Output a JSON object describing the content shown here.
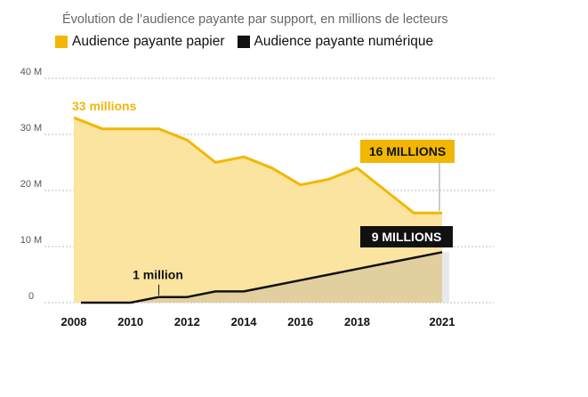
{
  "subtitle": "Évolution de l’audience payante par support, en millions de lecteurs",
  "colors": {
    "paper_line": "#f2b705",
    "paper_fill": "#fbe4a0",
    "digital_line": "#111111",
    "overlap_fill": "#e2cfa0",
    "grid": "#bbbbbb"
  },
  "chart_data": {
    "type": "area",
    "title": "",
    "subtitle": "Évolution de l’audience payante par support, en millions de lecteurs",
    "xlabel": "",
    "ylabel": "",
    "ylim": [
      0,
      40
    ],
    "xlim": [
      2008,
      2021
    ],
    "y_ticks": [
      {
        "value": 0,
        "label": "0"
      },
      {
        "value": 10,
        "label": "10 M"
      },
      {
        "value": 20,
        "label": "20 M"
      },
      {
        "value": 30,
        "label": "30 M"
      },
      {
        "value": 40,
        "label": "40 M"
      }
    ],
    "x_ticks": [
      {
        "value": 2008,
        "label": "2008"
      },
      {
        "value": 2010,
        "label": "2010"
      },
      {
        "value": 2012,
        "label": "2012"
      },
      {
        "value": 2014,
        "label": "2014"
      },
      {
        "value": 2016,
        "label": "2016"
      },
      {
        "value": 2018,
        "label": "2018"
      },
      {
        "value": 2021,
        "label": "2021"
      }
    ],
    "grid": true,
    "legend_position": "top-left",
    "series": [
      {
        "name": "Audience payante papier",
        "color": "#f2b705",
        "x": [
          2008,
          2009,
          2010,
          2011,
          2012,
          2013,
          2014,
          2015,
          2016,
          2017,
          2018,
          2019,
          2020,
          2021
        ],
        "values": [
          33,
          31,
          31,
          31,
          29,
          25,
          26,
          24,
          21,
          22,
          24,
          20,
          16,
          16
        ]
      },
      {
        "name": "Audience payante numérique",
        "color": "#111111",
        "x": [
          2008,
          2009,
          2010,
          2011,
          2012,
          2013,
          2014,
          2015,
          2016,
          2017,
          2018,
          2019,
          2020,
          2021
        ],
        "values": [
          0,
          0,
          0,
          1,
          1,
          2,
          2,
          3,
          4,
          5,
          6,
          7,
          8,
          9
        ]
      }
    ],
    "annotations": [
      {
        "text": "33 millions",
        "series": 0,
        "x": 2008,
        "y": 33,
        "style": "plain-yellow"
      },
      {
        "text": "16 MILLIONS",
        "series": 0,
        "x": 2021,
        "y": 16,
        "style": "box-yellow"
      },
      {
        "text": "1 million",
        "series": 1,
        "x": 2011,
        "y": 1,
        "style": "plain-black"
      },
      {
        "text": "9 MILLIONS",
        "series": 1,
        "x": 2021,
        "y": 9,
        "style": "box-black"
      }
    ]
  }
}
